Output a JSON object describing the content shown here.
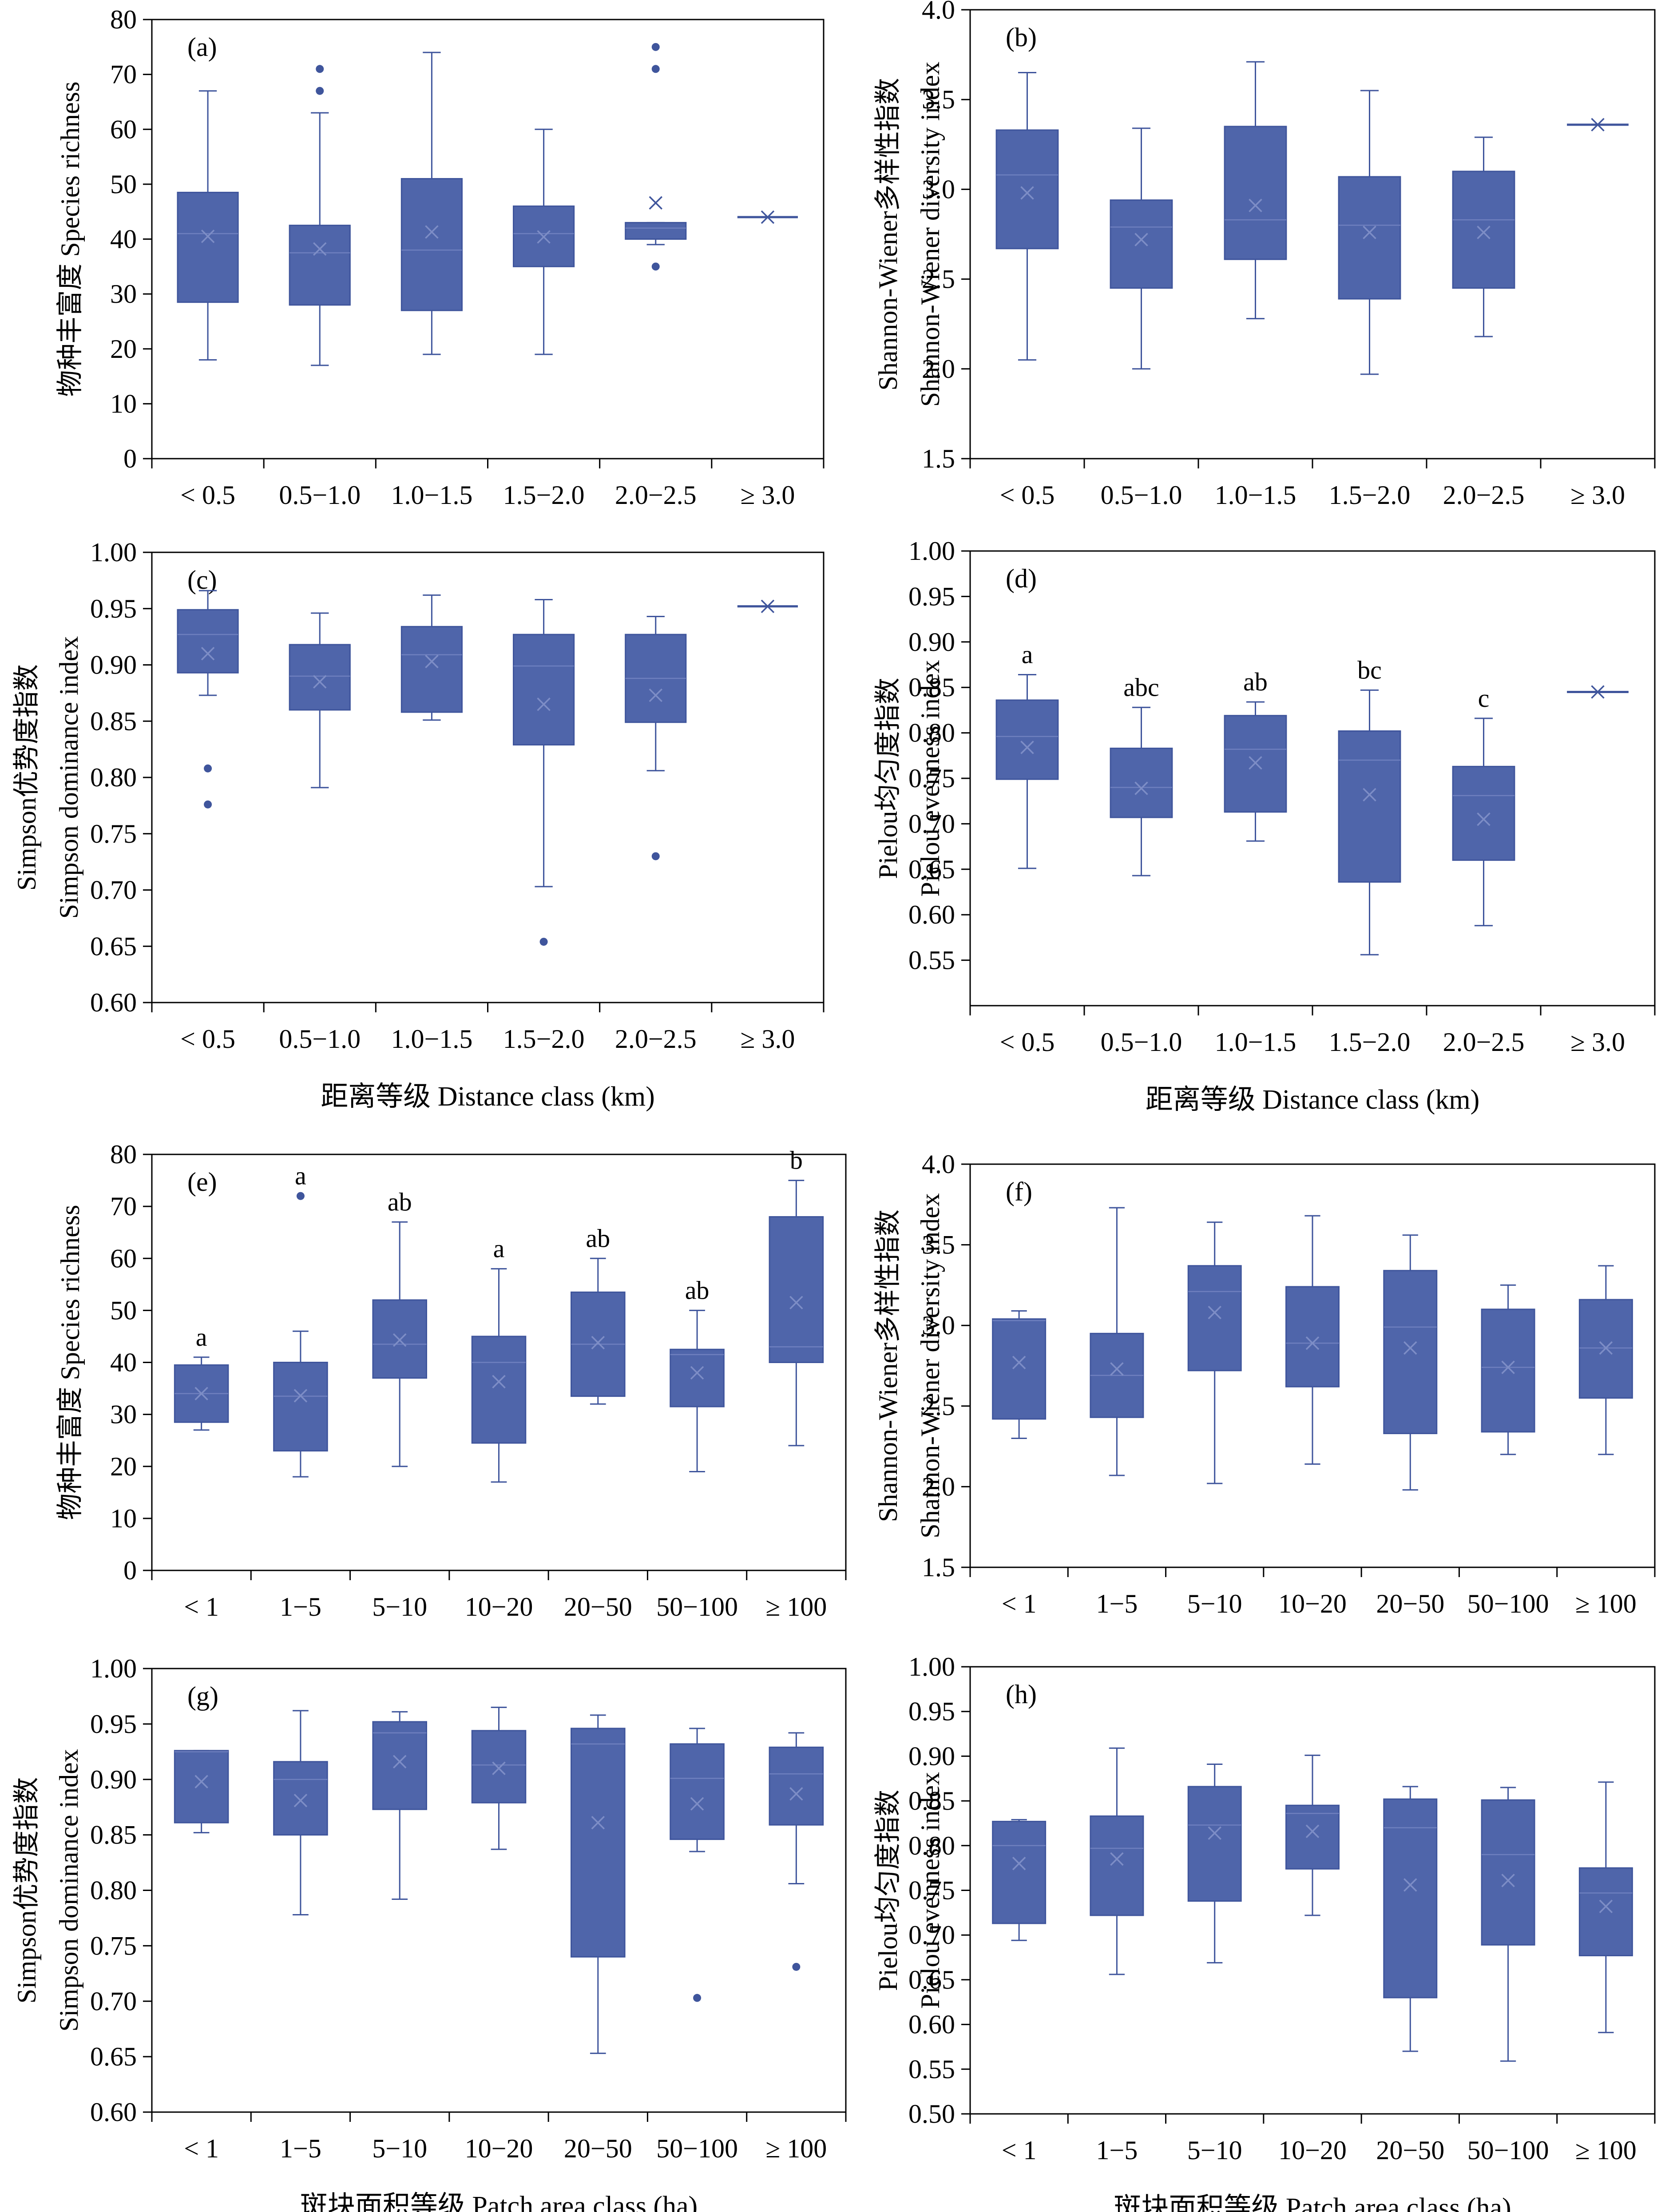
{
  "colors": {
    "box_fill": "#4f65aa",
    "box_stroke": "#3f559c",
    "axis": "#000000"
  },
  "chart_data": [
    {
      "id": "a",
      "type": "boxplot",
      "panel_label": "(a)",
      "ylabel": "物种丰富度 Species richness",
      "xlabel": "",
      "ylim": [
        0,
        80
      ],
      "yticks": [
        0,
        10,
        20,
        30,
        40,
        50,
        60,
        70,
        80
      ],
      "ytick_labels": [
        "0",
        "10",
        "20",
        "30",
        "40",
        "50",
        "60",
        "70",
        "80"
      ],
      "categories": [
        "< 0.5",
        "0.5−1.0",
        "1.0−1.5",
        "1.5−2.0",
        "2.0−2.5",
        "≥ 3.0"
      ],
      "boxes": [
        {
          "whisker_low": 18,
          "q1": 28.5,
          "median": 41,
          "q3": 48.5,
          "whisker_high": 67,
          "mean": 40.5,
          "outliers": []
        },
        {
          "whisker_low": 17,
          "q1": 28,
          "median": 37.5,
          "q3": 42.5,
          "whisker_high": 63,
          "mean": 38.2,
          "outliers": [
            67,
            71
          ]
        },
        {
          "whisker_low": 19,
          "q1": 27,
          "median": 38,
          "q3": 51,
          "whisker_high": 74,
          "mean": 41.3,
          "outliers": []
        },
        {
          "whisker_low": 19,
          "q1": 35,
          "median": 41,
          "q3": 46,
          "whisker_high": 60,
          "mean": 40.4,
          "outliers": []
        },
        {
          "whisker_low": 39,
          "q1": 40,
          "median": 42,
          "q3": 43,
          "whisker_high": 43,
          "mean": 46.6,
          "outliers": [
            35,
            71,
            75
          ]
        },
        {
          "whisker_low": 44,
          "q1": 44,
          "median": 44,
          "q3": 44,
          "whisker_high": 44,
          "mean": 44,
          "outliers": []
        }
      ],
      "letters": []
    },
    {
      "id": "b",
      "type": "boxplot",
      "panel_label": "(b)",
      "ylabel": "Shannon-Wiener多样性指数",
      "ylabel2": "Shannon-Wiener diversity index",
      "xlabel": "",
      "ylim": [
        1.5,
        4.0
      ],
      "yticks": [
        1.5,
        2.0,
        2.5,
        3.0,
        3.5,
        4.0
      ],
      "ytick_labels": [
        "1.5",
        "2.0",
        "2.5",
        "3.0",
        "3.5",
        "4.0"
      ],
      "categories": [
        "< 0.5",
        "0.5−1.0",
        "1.0−1.5",
        "1.5−2.0",
        "2.0−2.5",
        "≥ 3.0"
      ],
      "boxes": [
        {
          "whisker_low": 2.05,
          "q1": 2.67,
          "median": 3.08,
          "q3": 3.33,
          "whisker_high": 3.65,
          "mean": 2.98,
          "outliers": []
        },
        {
          "whisker_low": 2.0,
          "q1": 2.45,
          "median": 2.79,
          "q3": 2.94,
          "whisker_high": 3.34,
          "mean": 2.72,
          "outliers": []
        },
        {
          "whisker_low": 2.28,
          "q1": 2.61,
          "median": 2.83,
          "q3": 3.35,
          "whisker_high": 3.71,
          "mean": 2.91,
          "outliers": []
        },
        {
          "whisker_low": 1.97,
          "q1": 2.39,
          "median": 2.8,
          "q3": 3.07,
          "whisker_high": 3.55,
          "mean": 2.76,
          "outliers": []
        },
        {
          "whisker_low": 2.18,
          "q1": 2.45,
          "median": 2.83,
          "q3": 3.1,
          "whisker_high": 3.29,
          "mean": 2.76,
          "outliers": []
        },
        {
          "whisker_low": 3.36,
          "q1": 3.36,
          "median": 3.36,
          "q3": 3.36,
          "whisker_high": 3.36,
          "mean": 3.36,
          "outliers": []
        }
      ],
      "letters": []
    },
    {
      "id": "c",
      "type": "boxplot",
      "panel_label": "(c)",
      "ylabel": "Simpson优势度指数",
      "ylabel2": "Simpson dominance index",
      "xlabel": "距离等级 Distance class (km)",
      "ylim": [
        0.6,
        1.0
      ],
      "yticks": [
        0.6,
        0.65,
        0.7,
        0.75,
        0.8,
        0.85,
        0.9,
        0.95,
        1.0
      ],
      "ytick_labels": [
        "0.60",
        "0.65",
        "0.70",
        "0.75",
        "0.80",
        "0.85",
        "0.90",
        "0.95",
        "1.00"
      ],
      "categories": [
        "< 0.5",
        "0.5−1.0",
        "1.0−1.5",
        "1.5−2.0",
        "2.0−2.5",
        "≥ 3.0"
      ],
      "boxes": [
        {
          "whisker_low": 0.873,
          "q1": 0.893,
          "median": 0.927,
          "q3": 0.949,
          "whisker_high": 0.966,
          "mean": 0.91,
          "outliers": [
            0.776,
            0.808
          ]
        },
        {
          "whisker_low": 0.791,
          "q1": 0.86,
          "median": 0.89,
          "q3": 0.918,
          "whisker_high": 0.946,
          "mean": 0.885,
          "outliers": []
        },
        {
          "whisker_low": 0.851,
          "q1": 0.858,
          "median": 0.909,
          "q3": 0.934,
          "whisker_high": 0.962,
          "mean": 0.903,
          "outliers": []
        },
        {
          "whisker_low": 0.703,
          "q1": 0.829,
          "median": 0.899,
          "q3": 0.927,
          "whisker_high": 0.958,
          "mean": 0.865,
          "outliers": [
            0.654
          ]
        },
        {
          "whisker_low": 0.806,
          "q1": 0.849,
          "median": 0.888,
          "q3": 0.927,
          "whisker_high": 0.943,
          "mean": 0.873,
          "outliers": [
            0.73
          ]
        },
        {
          "whisker_low": 0.952,
          "q1": 0.952,
          "median": 0.952,
          "q3": 0.952,
          "whisker_high": 0.952,
          "mean": 0.952,
          "outliers": []
        }
      ],
      "letters": []
    },
    {
      "id": "d",
      "type": "boxplot",
      "panel_label": "(d)",
      "ylabel": "Pielou均匀度指数",
      "ylabel2": "Pielou evenness index",
      "xlabel": "距离等级 Distance class (km)",
      "ylim": [
        0.5,
        1.0
      ],
      "yticks": [
        0.55,
        0.6,
        0.65,
        0.7,
        0.75,
        0.8,
        0.85,
        0.9,
        0.95,
        1.0
      ],
      "ytick_labels": [
        "0.55",
        "0.60",
        "0.65",
        "0.70",
        "0.75",
        "0.80",
        "0.85",
        "0.90",
        "0.95",
        "1.00"
      ],
      "categories": [
        "< 0.5",
        "0.5−1.0",
        "1.0−1.5",
        "1.5−2.0",
        "2.0−2.5",
        "≥ 3.0"
      ],
      "boxes": [
        {
          "whisker_low": 0.651,
          "q1": 0.749,
          "median": 0.796,
          "q3": 0.836,
          "whisker_high": 0.864,
          "mean": 0.784,
          "outliers": []
        },
        {
          "whisker_low": 0.643,
          "q1": 0.707,
          "median": 0.74,
          "q3": 0.783,
          "whisker_high": 0.828,
          "mean": 0.739,
          "outliers": []
        },
        {
          "whisker_low": 0.681,
          "q1": 0.713,
          "median": 0.782,
          "q3": 0.819,
          "whisker_high": 0.834,
          "mean": 0.767,
          "outliers": []
        },
        {
          "whisker_low": 0.556,
          "q1": 0.636,
          "median": 0.77,
          "q3": 0.802,
          "whisker_high": 0.847,
          "mean": 0.732,
          "outliers": []
        },
        {
          "whisker_low": 0.588,
          "q1": 0.66,
          "median": 0.731,
          "q3": 0.763,
          "whisker_high": 0.816,
          "mean": 0.705,
          "outliers": []
        },
        {
          "whisker_low": 0.845,
          "q1": 0.845,
          "median": 0.845,
          "q3": 0.845,
          "whisker_high": 0.845,
          "mean": 0.845,
          "outliers": []
        }
      ],
      "letters": [
        "a",
        "abc",
        "ab",
        "bc",
        "c",
        ""
      ]
    },
    {
      "id": "e",
      "type": "boxplot",
      "panel_label": "(e)",
      "ylabel": "物种丰富度 Species richness",
      "xlabel": "",
      "ylim": [
        0,
        80
      ],
      "yticks": [
        0,
        10,
        20,
        30,
        40,
        50,
        60,
        70,
        80
      ],
      "ytick_labels": [
        "0",
        "10",
        "20",
        "30",
        "40",
        "50",
        "60",
        "70",
        "80"
      ],
      "categories": [
        "< 1",
        "1−5",
        "5−10",
        "10−20",
        "20−50",
        "50−100",
        "≥ 100"
      ],
      "boxes": [
        {
          "whisker_low": 27,
          "q1": 28.5,
          "median": 34,
          "q3": 39.5,
          "whisker_high": 41,
          "mean": 34,
          "outliers": []
        },
        {
          "whisker_low": 18,
          "q1": 23,
          "median": 33.5,
          "q3": 40,
          "whisker_high": 46,
          "mean": 33.6,
          "outliers": [
            72
          ]
        },
        {
          "whisker_low": 20,
          "q1": 37,
          "median": 43.5,
          "q3": 52,
          "whisker_high": 67,
          "mean": 44.3,
          "outliers": []
        },
        {
          "whisker_low": 17,
          "q1": 24.5,
          "median": 40,
          "q3": 45,
          "whisker_high": 58,
          "mean": 36.3,
          "outliers": []
        },
        {
          "whisker_low": 32,
          "q1": 33.5,
          "median": 43.5,
          "q3": 53.5,
          "whisker_high": 60,
          "mean": 43.8,
          "outliers": []
        },
        {
          "whisker_low": 19,
          "q1": 31.5,
          "median": 41.5,
          "q3": 42.5,
          "whisker_high": 50,
          "mean": 38,
          "outliers": []
        },
        {
          "whisker_low": 24,
          "q1": 40,
          "median": 43,
          "q3": 68,
          "whisker_high": 75,
          "mean": 51.5,
          "outliers": []
        }
      ],
      "letters": [
        "a",
        "a",
        "ab",
        "a",
        "ab",
        "ab",
        "b"
      ]
    },
    {
      "id": "f",
      "type": "boxplot",
      "panel_label": "(f)",
      "ylabel": "Shannon-Wiener多样性指数",
      "ylabel2": "Shannon-Wiener diversity index",
      "xlabel": "",
      "ylim": [
        1.5,
        4.0
      ],
      "yticks": [
        1.5,
        2.0,
        2.5,
        3.0,
        3.5,
        4.0
      ],
      "ytick_labels": [
        "1.5",
        "2.0",
        "2.5",
        "3.0",
        "3.5",
        "4.0"
      ],
      "categories": [
        "< 1",
        "1−5",
        "5−10",
        "10−20",
        "20−50",
        "50−100",
        "≥ 100"
      ],
      "boxes": [
        {
          "whisker_low": 2.3,
          "q1": 2.42,
          "median": 3.03,
          "q3": 3.04,
          "whisker_high": 3.09,
          "mean": 2.77,
          "outliers": []
        },
        {
          "whisker_low": 2.07,
          "q1": 2.43,
          "median": 2.69,
          "q3": 2.95,
          "whisker_high": 3.73,
          "mean": 2.73,
          "outliers": []
        },
        {
          "whisker_low": 2.02,
          "q1": 2.72,
          "median": 3.21,
          "q3": 3.37,
          "whisker_high": 3.64,
          "mean": 3.08,
          "outliers": []
        },
        {
          "whisker_low": 2.14,
          "q1": 2.62,
          "median": 2.89,
          "q3": 3.24,
          "whisker_high": 3.68,
          "mean": 2.89,
          "outliers": []
        },
        {
          "whisker_low": 1.98,
          "q1": 2.33,
          "median": 2.99,
          "q3": 3.34,
          "whisker_high": 3.56,
          "mean": 2.86,
          "outliers": []
        },
        {
          "whisker_low": 2.2,
          "q1": 2.34,
          "median": 2.74,
          "q3": 3.1,
          "whisker_high": 3.25,
          "mean": 2.74,
          "outliers": []
        },
        {
          "whisker_low": 2.2,
          "q1": 2.55,
          "median": 2.86,
          "q3": 3.16,
          "whisker_high": 3.37,
          "mean": 2.86,
          "outliers": []
        }
      ],
      "letters": []
    },
    {
      "id": "g",
      "type": "boxplot",
      "panel_label": "(g)",
      "ylabel": "Simpson优势度指数",
      "ylabel2": "Simpson dominance index",
      "xlabel": "斑块面积等级 Patch area class (ha)",
      "ylim": [
        0.6,
        1.0
      ],
      "yticks": [
        0.6,
        0.65,
        0.7,
        0.75,
        0.8,
        0.85,
        0.9,
        0.95,
        1.0
      ],
      "ytick_labels": [
        "0.60",
        "0.65",
        "0.70",
        "0.75",
        "0.80",
        "0.85",
        "0.90",
        "0.95",
        "1.00"
      ],
      "categories": [
        "< 1",
        "1−5",
        "5−10",
        "10−20",
        "20−50",
        "50−100",
        "≥ 100"
      ],
      "boxes": [
        {
          "whisker_low": 0.852,
          "q1": 0.861,
          "median": 0.925,
          "q3": 0.926,
          "whisker_high": 0.926,
          "mean": 0.898,
          "outliers": []
        },
        {
          "whisker_low": 0.778,
          "q1": 0.85,
          "median": 0.9,
          "q3": 0.916,
          "whisker_high": 0.962,
          "mean": 0.881,
          "outliers": []
        },
        {
          "whisker_low": 0.792,
          "q1": 0.873,
          "median": 0.942,
          "q3": 0.952,
          "whisker_high": 0.961,
          "mean": 0.916,
          "outliers": []
        },
        {
          "whisker_low": 0.837,
          "q1": 0.879,
          "median": 0.913,
          "q3": 0.944,
          "whisker_high": 0.965,
          "mean": 0.91,
          "outliers": []
        },
        {
          "whisker_low": 0.653,
          "q1": 0.74,
          "median": 0.932,
          "q3": 0.946,
          "whisker_high": 0.958,
          "mean": 0.861,
          "outliers": []
        },
        {
          "whisker_low": 0.835,
          "q1": 0.846,
          "median": 0.901,
          "q3": 0.932,
          "whisker_high": 0.946,
          "mean": 0.878,
          "outliers": [
            0.703
          ]
        },
        {
          "whisker_low": 0.806,
          "q1": 0.859,
          "median": 0.905,
          "q3": 0.929,
          "whisker_high": 0.942,
          "mean": 0.887,
          "outliers": [
            0.731
          ]
        }
      ],
      "letters": []
    },
    {
      "id": "h",
      "type": "boxplot",
      "panel_label": "(h)",
      "ylabel": "Pielou均匀度指数",
      "ylabel2": "Pielou evenness index",
      "xlabel": "斑块面积等级 Patch area class (ha)",
      "ylim": [
        0.5,
        1.0
      ],
      "yticks": [
        0.5,
        0.55,
        0.6,
        0.65,
        0.7,
        0.75,
        0.8,
        0.85,
        0.9,
        0.95,
        1.0
      ],
      "ytick_labels": [
        "0.50",
        "0.55",
        "0.60",
        "0.65",
        "0.70",
        "0.75",
        "0.80",
        "0.85",
        "0.90",
        "0.95",
        "1.00"
      ],
      "categories": [
        "< 1",
        "1−5",
        "5−10",
        "10−20",
        "20−50",
        "50−100",
        "≥ 100"
      ],
      "boxes": [
        {
          "whisker_low": 0.694,
          "q1": 0.713,
          "median": 0.8,
          "q3": 0.827,
          "whisker_high": 0.829,
          "mean": 0.78,
          "outliers": []
        },
        {
          "whisker_low": 0.656,
          "q1": 0.722,
          "median": 0.797,
          "q3": 0.833,
          "whisker_high": 0.909,
          "mean": 0.785,
          "outliers": []
        },
        {
          "whisker_low": 0.669,
          "q1": 0.738,
          "median": 0.823,
          "q3": 0.866,
          "whisker_high": 0.891,
          "mean": 0.814,
          "outliers": []
        },
        {
          "whisker_low": 0.722,
          "q1": 0.774,
          "median": 0.836,
          "q3": 0.845,
          "whisker_high": 0.901,
          "mean": 0.816,
          "outliers": []
        },
        {
          "whisker_low": 0.57,
          "q1": 0.63,
          "median": 0.82,
          "q3": 0.852,
          "whisker_high": 0.866,
          "mean": 0.756,
          "outliers": []
        },
        {
          "whisker_low": 0.559,
          "q1": 0.689,
          "median": 0.79,
          "q3": 0.851,
          "whisker_high": 0.865,
          "mean": 0.761,
          "outliers": []
        },
        {
          "whisker_low": 0.591,
          "q1": 0.677,
          "median": 0.747,
          "q3": 0.775,
          "whisker_high": 0.871,
          "mean": 0.732,
          "outliers": []
        }
      ],
      "letters": []
    }
  ]
}
